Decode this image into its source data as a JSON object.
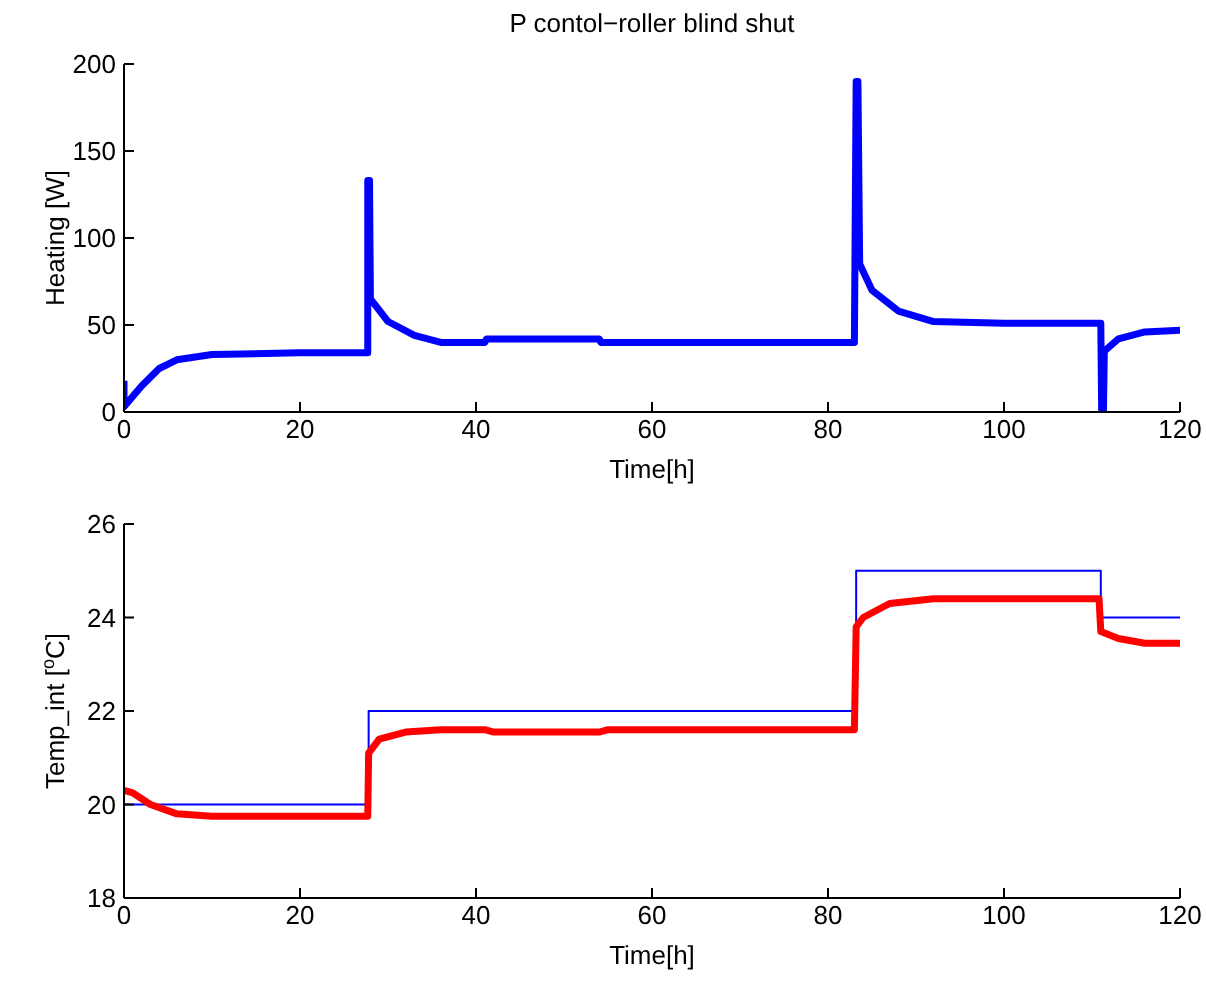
{
  "chart_data": [
    {
      "type": "line",
      "title": "P contol−roller blind shut",
      "xlabel": "Time[h]",
      "ylabel": "Heating [W]",
      "xlim": [
        0,
        120
      ],
      "xticks": [
        0,
        20,
        40,
        60,
        80,
        100,
        120
      ],
      "ylim": [
        0,
        200
      ],
      "yticks": [
        0,
        50,
        100,
        150,
        200
      ],
      "grid": false,
      "legend": false,
      "marker": "none",
      "line_style": "solid",
      "series": [
        {
          "color": "#0000ff",
          "x": [
            0,
            0,
            2,
            4,
            6,
            10,
            20,
            27.7,
            27.7,
            27.9,
            28,
            30,
            33,
            36,
            41,
            41.2,
            54,
            54.2,
            83,
            83.2,
            83.4,
            83.6,
            85,
            88,
            92,
            100,
            111,
            111.1,
            111.3,
            111.4,
            113,
            116,
            120
          ],
          "values": [
            18,
            3,
            15,
            25,
            30,
            33,
            34,
            34,
            133,
            133,
            65,
            52,
            44,
            40,
            40,
            42,
            42,
            40,
            40,
            190,
            190,
            85,
            70,
            58,
            52,
            51,
            51,
            0,
            0,
            35,
            42,
            46,
            47
          ]
        }
      ]
    },
    {
      "type": "line",
      "xlabel": "Time[h]",
      "ylabel": "Temp_int [$^{o}$C]",
      "xlim": [
        0,
        120
      ],
      "xticks": [
        0,
        20,
        40,
        60,
        80,
        100,
        120
      ],
      "ylim": [
        18,
        26
      ],
      "yticks": [
        18,
        20,
        22,
        24,
        26
      ],
      "grid": false,
      "legend": false,
      "marker": "none",
      "line_style": "solid",
      "series": [
        {
          "color": "#0000ff",
          "x": [
            0,
            27.8,
            27.8,
            83.2,
            83.2,
            111,
            111,
            120
          ],
          "values": [
            20,
            20,
            22,
            22,
            25,
            25,
            24,
            24
          ]
        },
        {
          "color": "#ff0000",
          "x": [
            0,
            1,
            3,
            6,
            10,
            27.7,
            27.8,
            29,
            32,
            36,
            41,
            42,
            54,
            55,
            83,
            83.2,
            84,
            87,
            92,
            110.8,
            111,
            113,
            116,
            120
          ],
          "values": [
            20.3,
            20.25,
            20,
            19.8,
            19.75,
            19.75,
            21.1,
            21.4,
            21.55,
            21.6,
            21.6,
            21.55,
            21.55,
            21.6,
            21.6,
            23.8,
            24,
            24.3,
            24.4,
            24.4,
            23.7,
            23.55,
            23.45,
            23.45
          ]
        }
      ]
    }
  ]
}
